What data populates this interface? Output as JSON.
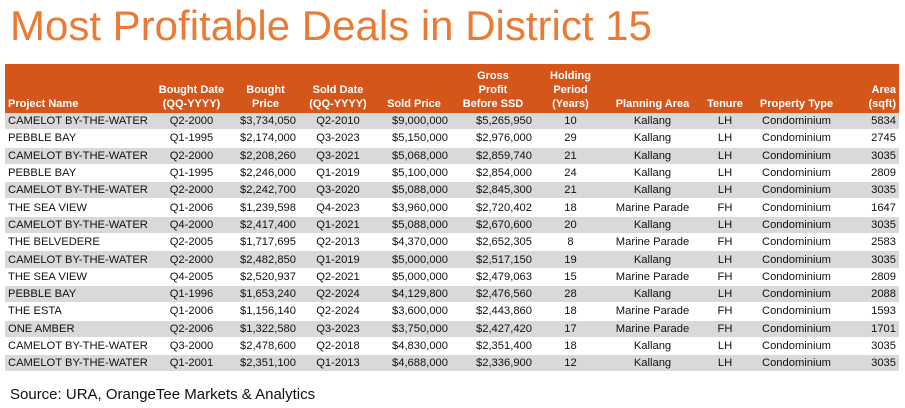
{
  "title": "Most Profitable Deals in District 15",
  "table": {
    "header": [
      "Project Name",
      "Bought Date\n(QQ-YYYY)",
      "Bought\nPrice",
      "Sold Date\n(QQ-YYYY)",
      "Sold Price",
      "Gross\nProfit\nBefore SSD",
      "Holding\nPeriod\n(Years)",
      "Planning Area",
      "Tenure",
      "Property Type",
      "Area\n(sqft)"
    ],
    "rows": [
      [
        "CAMELOT BY-THE-WATER",
        "Q2-2000",
        "$3,734,050",
        "Q2-2010",
        "$9,000,000",
        "$5,265,950",
        "10",
        "Kallang",
        "LH",
        "Condominium",
        "5834"
      ],
      [
        "PEBBLE BAY",
        "Q1-1995",
        "$2,174,000",
        "Q3-2023",
        "$5,150,000",
        "$2,976,000",
        "29",
        "Kallang",
        "LH",
        "Condominium",
        "2745"
      ],
      [
        "CAMELOT BY-THE-WATER",
        "Q2-2000",
        "$2,208,260",
        "Q3-2021",
        "$5,068,000",
        "$2,859,740",
        "21",
        "Kallang",
        "LH",
        "Condominium",
        "3035"
      ],
      [
        "PEBBLE BAY",
        "Q1-1995",
        "$2,246,000",
        "Q1-2019",
        "$5,100,000",
        "$2,854,000",
        "24",
        "Kallang",
        "LH",
        "Condominium",
        "2809"
      ],
      [
        "CAMELOT BY-THE-WATER",
        "Q2-2000",
        "$2,242,700",
        "Q3-2020",
        "$5,088,000",
        "$2,845,300",
        "21",
        "Kallang",
        "LH",
        "Condominium",
        "3035"
      ],
      [
        "THE SEA VIEW",
        "Q1-2006",
        "$1,239,598",
        "Q4-2023",
        "$3,960,000",
        "$2,720,402",
        "18",
        "Marine Parade",
        "FH",
        "Condominium",
        "1647"
      ],
      [
        "CAMELOT BY-THE-WATER",
        "Q4-2000",
        "$2,417,400",
        "Q1-2021",
        "$5,088,000",
        "$2,670,600",
        "20",
        "Kallang",
        "LH",
        "Condominium",
        "3035"
      ],
      [
        "THE BELVEDERE",
        "Q2-2005",
        "$1,717,695",
        "Q2-2013",
        "$4,370,000",
        "$2,652,305",
        "8",
        "Marine Parade",
        "FH",
        "Condominium",
        "2583"
      ],
      [
        "CAMELOT BY-THE-WATER",
        "Q2-2000",
        "$2,482,850",
        "Q1-2019",
        "$5,000,000",
        "$2,517,150",
        "19",
        "Kallang",
        "LH",
        "Condominium",
        "3035"
      ],
      [
        "THE SEA VIEW",
        "Q4-2005",
        "$2,520,937",
        "Q2-2021",
        "$5,000,000",
        "$2,479,063",
        "15",
        "Marine Parade",
        "FH",
        "Condominium",
        "2809"
      ],
      [
        "PEBBLE BAY",
        "Q1-1996",
        "$1,653,240",
        "Q2-2024",
        "$4,129,800",
        "$2,476,560",
        "28",
        "Kallang",
        "LH",
        "Condominium",
        "2088"
      ],
      [
        "THE ESTA",
        "Q1-2006",
        "$1,156,140",
        "Q2-2024",
        "$3,600,000",
        "$2,443,860",
        "18",
        "Marine Parade",
        "FH",
        "Condominium",
        "1593"
      ],
      [
        "ONE AMBER",
        "Q2-2006",
        "$1,322,580",
        "Q3-2023",
        "$3,750,000",
        "$2,427,420",
        "17",
        "Marine Parade",
        "FH",
        "Condominium",
        "1701"
      ],
      [
        "CAMELOT BY-THE-WATER",
        "Q3-2000",
        "$2,478,600",
        "Q2-2018",
        "$4,830,000",
        "$2,351,400",
        "18",
        "Kallang",
        "LH",
        "Condominium",
        "3035"
      ],
      [
        "CAMELOT BY-THE-WATER",
        "Q1-2001",
        "$2,351,100",
        "Q1-2013",
        "$4,688,000",
        "$2,336,900",
        "12",
        "Kallang",
        "LH",
        "Condominium",
        "3035"
      ]
    ]
  },
  "source": "Source: URA, OrangeTee Markets & Analytics"
}
